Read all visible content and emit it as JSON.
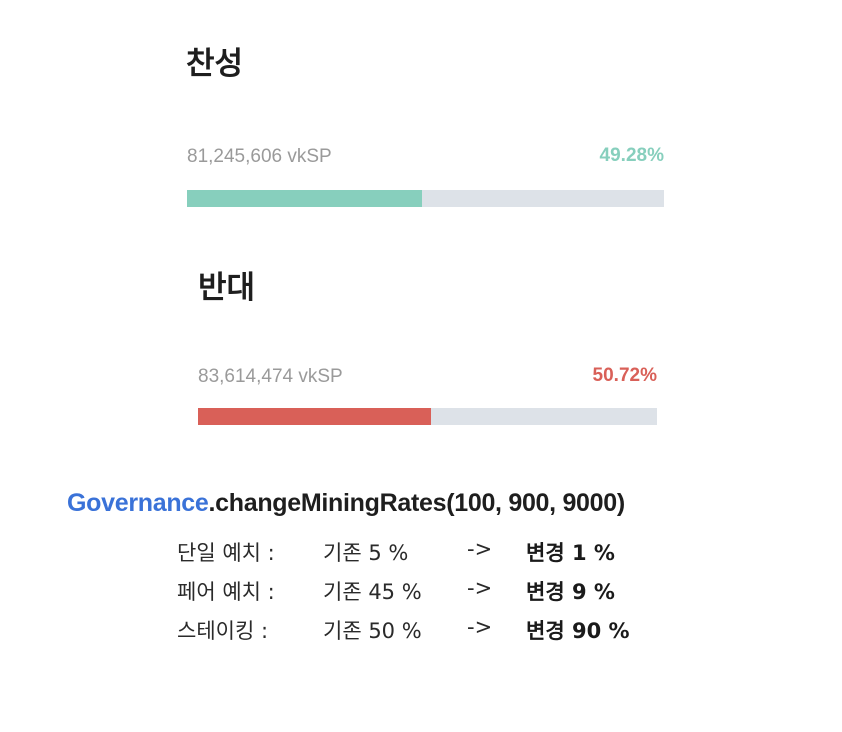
{
  "votes": {
    "for": {
      "title": "찬성",
      "amount": "81,245,606 vkSP",
      "percent_label": "49.28%",
      "percent": 49.28,
      "color": "#87cfbd"
    },
    "against": {
      "title": "반대",
      "amount": "83,614,474 vkSP",
      "percent_label": "50.72%",
      "percent": 50.72,
      "color": "#d96058"
    },
    "track_color": "#dde2e8"
  },
  "proposal": {
    "call_object": "Governance",
    "call_method": ".changeMiningRates(100, 900, 9000)",
    "object_color": "#3a72d8"
  },
  "rates": [
    {
      "label": "단일 예치 :",
      "old": "기존 5 %",
      "arrow": "->",
      "new": "변경 1 %"
    },
    {
      "label": "페어 예치 :",
      "old": "기존 45 %",
      "arrow": "->",
      "new": "변경 9 %"
    },
    {
      "label": "스테이킹 :",
      "old": "기존 50 %",
      "arrow": "->",
      "new": "변경 90 %"
    }
  ]
}
